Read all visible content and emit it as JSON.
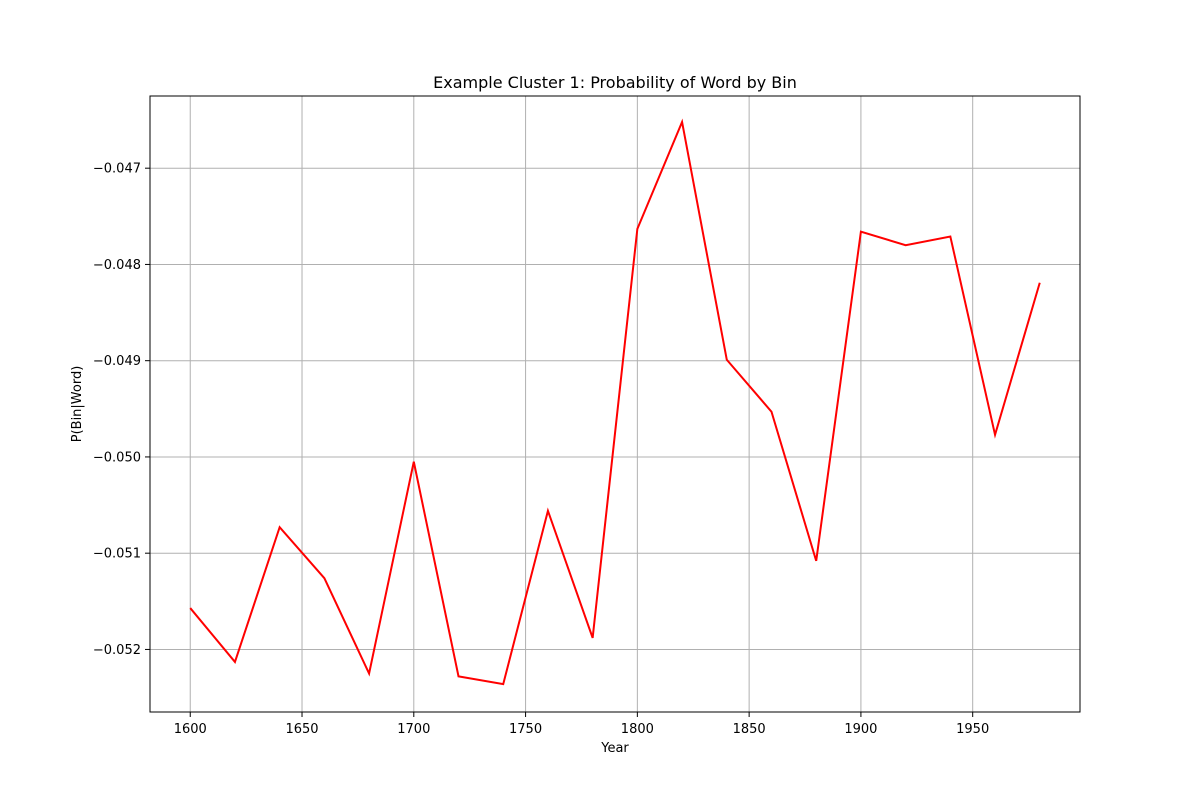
{
  "chart_data": {
    "type": "line",
    "title": "Example Cluster 1: Probability of Word by Bin",
    "xlabel": "Year",
    "ylabel": "P(Bin|Word)",
    "xlim": [
      1582,
      1998
    ],
    "ylim": [
      -0.05265,
      -0.04625
    ],
    "grid": true,
    "xticks": [
      1600,
      1650,
      1700,
      1750,
      1800,
      1850,
      1900,
      1950
    ],
    "yticks": [
      -0.047,
      -0.048,
      -0.049,
      -0.05,
      -0.051,
      -0.052
    ],
    "xtick_labels": [
      "1600",
      "1650",
      "1700",
      "1750",
      "1800",
      "1850",
      "1900",
      "1950"
    ],
    "ytick_labels": [
      "−0.047",
      "−0.048",
      "−0.049",
      "−0.050",
      "−0.051",
      "−0.052"
    ],
    "series": [
      {
        "color": "#ff0000",
        "x": [
          1600,
          1620,
          1640,
          1660,
          1680,
          1700,
          1720,
          1740,
          1760,
          1780,
          1800,
          1820,
          1840,
          1860,
          1880,
          1900,
          1920,
          1940,
          1960,
          1980
        ],
        "y": [
          -0.05157,
          -0.05213,
          -0.05073,
          -0.05126,
          -0.05225,
          -0.05005,
          -0.05228,
          -0.05236,
          -0.05056,
          -0.05188,
          -0.04763,
          -0.04652,
          -0.04899,
          -0.04953,
          -0.05108,
          -0.04766,
          -0.0478,
          -0.04771,
          -0.04977,
          -0.04819
        ]
      }
    ]
  }
}
